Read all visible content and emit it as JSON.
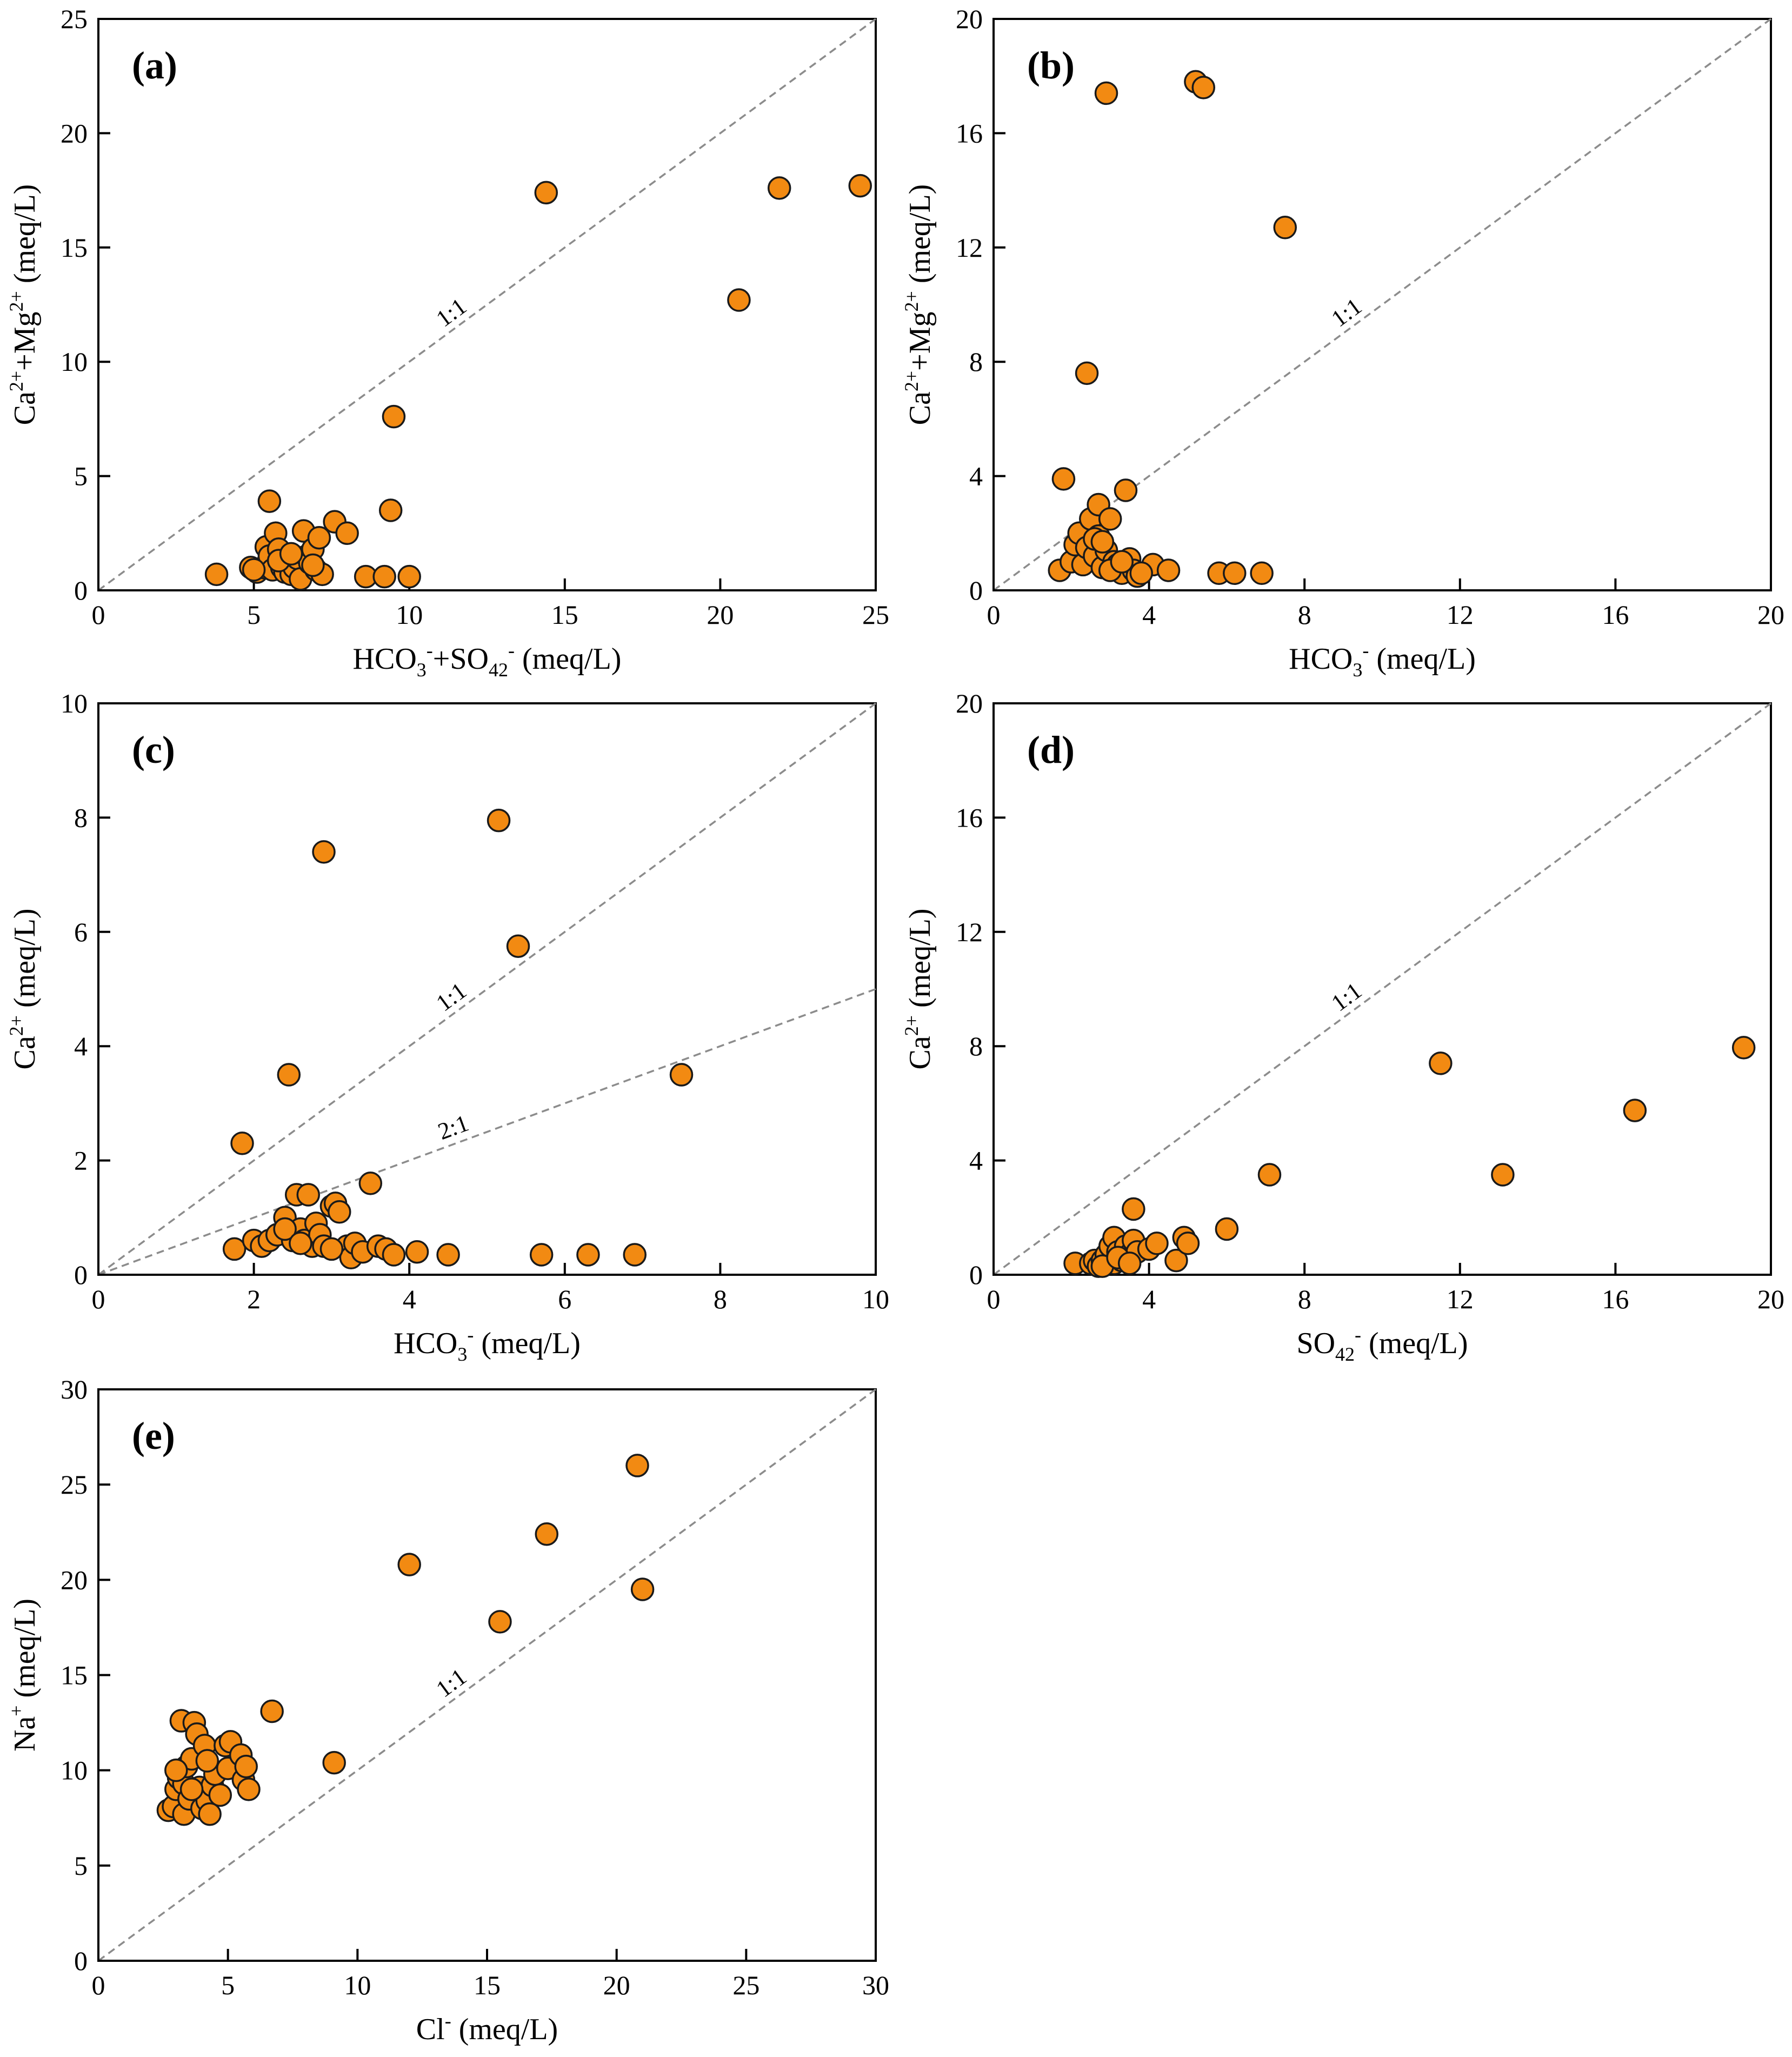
{
  "chart_data": [
    {
      "panel": "(a)",
      "type": "scatter",
      "xlabel": "HCO3-+SO42- (meq/L)",
      "ylabel": "Ca2++Mg2+ (meq/L)",
      "xlim": [
        0,
        25
      ],
      "ylim": [
        0,
        25
      ],
      "xticks": [
        0,
        5,
        10,
        15,
        20,
        25
      ],
      "yticks": [
        0,
        5,
        10,
        15,
        20,
        25
      ],
      "reference_lines": [
        {
          "label": "1:1",
          "slope": 1
        }
      ],
      "marker_color": "#F28A12",
      "points": [
        [
          3.8,
          0.7
        ],
        [
          4.9,
          1.0
        ],
        [
          5.1,
          0.8
        ],
        [
          5.3,
          1.0
        ],
        [
          5.4,
          1.9
        ],
        [
          5.5,
          1.5
        ],
        [
          5.6,
          0.9
        ],
        [
          5.7,
          2.5
        ],
        [
          5.8,
          1.8
        ],
        [
          5.9,
          1.0
        ],
        [
          6.0,
          0.8
        ],
        [
          6.1,
          1.2
        ],
        [
          6.2,
          0.7
        ],
        [
          6.3,
          1.0
        ],
        [
          6.4,
          1.4
        ],
        [
          6.5,
          0.5
        ],
        [
          6.6,
          2.6
        ],
        [
          6.7,
          1.5
        ],
        [
          6.8,
          1.2
        ],
        [
          6.9,
          1.8
        ],
        [
          7.0,
          0.9
        ],
        [
          7.1,
          2.3
        ],
        [
          7.2,
          0.7
        ],
        [
          7.6,
          3.0
        ],
        [
          8.0,
          2.5
        ],
        [
          8.6,
          0.6
        ],
        [
          9.2,
          0.6
        ],
        [
          9.4,
          3.5
        ],
        [
          9.5,
          7.6
        ],
        [
          10.0,
          0.6
        ],
        [
          5.5,
          3.9
        ],
        [
          5.0,
          0.9
        ],
        [
          5.8,
          1.3
        ],
        [
          6.2,
          1.6
        ],
        [
          6.9,
          1.1
        ],
        [
          14.4,
          17.4
        ],
        [
          20.6,
          12.7
        ],
        [
          21.9,
          17.6
        ],
        [
          24.5,
          17.7
        ]
      ]
    },
    {
      "panel": "(b)",
      "type": "scatter",
      "xlabel": "HCO3- (meq/L)",
      "ylabel": "Ca2++Mg2+ (meq/L)",
      "xlim": [
        0,
        20
      ],
      "ylim": [
        0,
        20
      ],
      "xticks": [
        0,
        4,
        8,
        12,
        16,
        20
      ],
      "yticks": [
        0,
        4,
        8,
        12,
        16,
        20
      ],
      "reference_lines": [
        {
          "label": "1:1",
          "slope": 1
        }
      ],
      "marker_color": "#F28A12",
      "points": [
        [
          1.7,
          0.7
        ],
        [
          1.8,
          3.9
        ],
        [
          2.0,
          1.0
        ],
        [
          2.1,
          1.6
        ],
        [
          2.2,
          2.0
        ],
        [
          2.3,
          0.9
        ],
        [
          2.4,
          1.5
        ],
        [
          2.4,
          7.6
        ],
        [
          2.5,
          2.5
        ],
        [
          2.6,
          1.2
        ],
        [
          2.7,
          3.0
        ],
        [
          2.7,
          1.9
        ],
        [
          2.8,
          0.8
        ],
        [
          2.9,
          17.4
        ],
        [
          2.9,
          1.4
        ],
        [
          3.0,
          2.5
        ],
        [
          3.1,
          1.0
        ],
        [
          3.2,
          0.9
        ],
        [
          3.3,
          0.6
        ],
        [
          3.4,
          3.5
        ],
        [
          3.5,
          1.1
        ],
        [
          3.6,
          0.7
        ],
        [
          3.7,
          0.5
        ],
        [
          4.1,
          0.9
        ],
        [
          4.5,
          0.7
        ],
        [
          5.2,
          17.8
        ],
        [
          5.4,
          17.6
        ],
        [
          5.8,
          0.6
        ],
        [
          6.2,
          0.6
        ],
        [
          6.9,
          0.6
        ],
        [
          7.5,
          12.7
        ],
        [
          2.6,
          1.8
        ],
        [
          2.8,
          1.7
        ],
        [
          3.0,
          0.7
        ],
        [
          3.3,
          1.0
        ],
        [
          3.8,
          0.6
        ]
      ]
    },
    {
      "panel": "(c)",
      "type": "scatter",
      "xlabel": "HCO3- (meq/L)",
      "ylabel": "Ca2+ (meq/L)",
      "xlim": [
        0,
        10
      ],
      "ylim": [
        0,
        10
      ],
      "xticks": [
        0,
        2,
        4,
        6,
        8,
        10
      ],
      "yticks": [
        0,
        2,
        4,
        6,
        8,
        10
      ],
      "reference_lines": [
        {
          "label": "1:1",
          "slope": 1
        },
        {
          "label": "2:1",
          "slope": 0.5
        }
      ],
      "marker_color": "#F28A12",
      "points": [
        [
          1.75,
          0.45
        ],
        [
          1.85,
          2.3
        ],
        [
          2.0,
          0.6
        ],
        [
          2.1,
          0.5
        ],
        [
          2.2,
          0.6
        ],
        [
          2.3,
          0.7
        ],
        [
          2.4,
          1.0
        ],
        [
          2.45,
          3.5
        ],
        [
          2.5,
          0.6
        ],
        [
          2.55,
          1.4
        ],
        [
          2.6,
          0.8
        ],
        [
          2.65,
          0.6
        ],
        [
          2.7,
          1.4
        ],
        [
          2.75,
          0.5
        ],
        [
          2.8,
          0.9
        ],
        [
          2.85,
          0.7
        ],
        [
          2.9,
          0.5
        ],
        [
          2.9,
          7.4
        ],
        [
          3.0,
          1.2
        ],
        [
          3.05,
          1.25
        ],
        [
          3.1,
          1.1
        ],
        [
          3.2,
          0.5
        ],
        [
          3.25,
          0.3
        ],
        [
          3.3,
          0.55
        ],
        [
          3.4,
          0.4
        ],
        [
          3.5,
          1.6
        ],
        [
          3.6,
          0.5
        ],
        [
          3.7,
          0.45
        ],
        [
          3.8,
          0.35
        ],
        [
          4.1,
          0.4
        ],
        [
          4.5,
          0.35
        ],
        [
          5.15,
          7.95
        ],
        [
          5.4,
          5.75
        ],
        [
          5.7,
          0.35
        ],
        [
          6.3,
          0.35
        ],
        [
          6.9,
          0.35
        ],
        [
          7.5,
          3.5
        ],
        [
          2.4,
          0.8
        ],
        [
          2.6,
          0.55
        ],
        [
          3.0,
          0.45
        ]
      ]
    },
    {
      "panel": "(d)",
      "type": "scatter",
      "xlabel": "SO42- (meq/L)",
      "ylabel": "Ca2+ (meq/L)",
      "xlim": [
        0,
        20
      ],
      "ylim": [
        0,
        20
      ],
      "xticks": [
        0,
        4,
        8,
        12,
        16,
        20
      ],
      "yticks": [
        0,
        4,
        8,
        12,
        16,
        20
      ],
      "reference_lines": [
        {
          "label": "1:1",
          "slope": 1
        }
      ],
      "marker_color": "#F28A12",
      "points": [
        [
          2.1,
          0.4
        ],
        [
          2.5,
          0.4
        ],
        [
          2.6,
          0.5
        ],
        [
          2.7,
          0.3
        ],
        [
          2.8,
          0.5
        ],
        [
          2.9,
          0.7
        ],
        [
          3.0,
          1.0
        ],
        [
          3.1,
          0.4
        ],
        [
          3.1,
          1.3
        ],
        [
          3.2,
          0.8
        ],
        [
          3.3,
          0.5
        ],
        [
          3.4,
          1.0
        ],
        [
          3.5,
          0.7
        ],
        [
          3.6,
          1.2
        ],
        [
          3.6,
          2.3
        ],
        [
          3.7,
          0.8
        ],
        [
          4.0,
          0.9
        ],
        [
          4.2,
          1.1
        ],
        [
          4.7,
          0.5
        ],
        [
          4.9,
          1.3
        ],
        [
          5.0,
          1.1
        ],
        [
          6.0,
          1.6
        ],
        [
          7.1,
          3.5
        ],
        [
          11.5,
          7.4
        ],
        [
          13.1,
          3.5
        ],
        [
          16.5,
          5.75
        ],
        [
          19.3,
          7.95
        ],
        [
          2.8,
          0.3
        ],
        [
          3.2,
          0.6
        ],
        [
          3.5,
          0.4
        ]
      ]
    },
    {
      "panel": "(e)",
      "type": "scatter",
      "xlabel": "Cl- (meq/L)",
      "ylabel": "Na+ (meq/L)",
      "xlim": [
        0,
        30
      ],
      "ylim": [
        0,
        30
      ],
      "xticks": [
        0,
        5,
        10,
        15,
        20,
        25,
        30
      ],
      "yticks": [
        0,
        5,
        10,
        15,
        20,
        25,
        30
      ],
      "reference_lines": [
        {
          "label": "1:1",
          "slope": 1
        }
      ],
      "marker_color": "#F28A12",
      "points": [
        [
          2.7,
          7.9
        ],
        [
          2.9,
          8.1
        ],
        [
          3.0,
          9.0
        ],
        [
          3.1,
          9.6
        ],
        [
          3.2,
          12.6
        ],
        [
          3.3,
          7.7
        ],
        [
          3.3,
          9.3
        ],
        [
          3.4,
          10.2
        ],
        [
          3.5,
          8.5
        ],
        [
          3.6,
          10.6
        ],
        [
          3.7,
          12.5
        ],
        [
          3.8,
          11.9
        ],
        [
          3.9,
          9.1
        ],
        [
          4.0,
          8.0
        ],
        [
          4.1,
          11.3
        ],
        [
          4.2,
          8.4
        ],
        [
          4.3,
          7.7
        ],
        [
          4.4,
          9.2
        ],
        [
          4.5,
          9.8
        ],
        [
          4.7,
          8.7
        ],
        [
          4.9,
          11.3
        ],
        [
          5.0,
          10.1
        ],
        [
          5.1,
          11.5
        ],
        [
          5.5,
          10.8
        ],
        [
          5.6,
          9.5
        ],
        [
          5.7,
          10.2
        ],
        [
          5.8,
          9.0
        ],
        [
          6.7,
          13.1
        ],
        [
          9.1,
          10.4
        ],
        [
          12.0,
          20.8
        ],
        [
          15.5,
          17.8
        ],
        [
          17.3,
          22.4
        ],
        [
          20.8,
          26.0
        ],
        [
          21.0,
          19.5
        ],
        [
          3.0,
          10.0
        ],
        [
          3.6,
          9.0
        ],
        [
          4.2,
          10.5
        ]
      ]
    }
  ]
}
